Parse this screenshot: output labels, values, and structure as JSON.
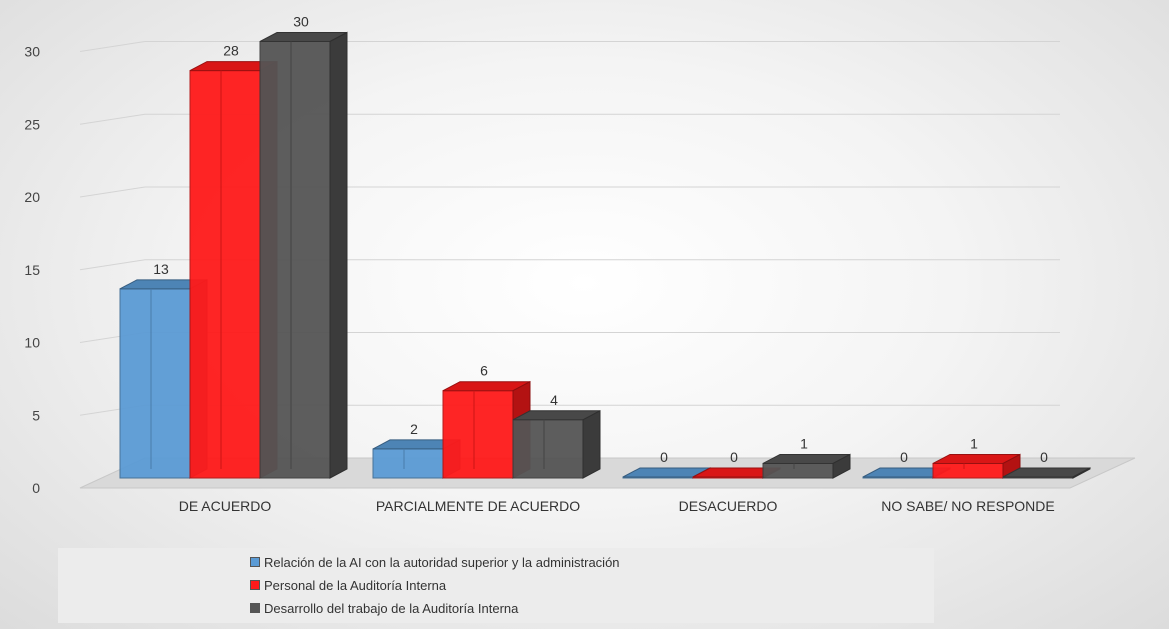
{
  "chart_data": {
    "type": "bar",
    "categories": [
      "DE ACUERDO",
      "PARCIALMENTE DE ACUERDO",
      "DESACUERDO",
      "NO SABE/ NO RESPONDE"
    ],
    "series": [
      {
        "name": "Relación de la AI con la autoridad superior y la administración",
        "values": [
          13,
          2,
          0,
          0
        ],
        "color": "#5b9bd5"
      },
      {
        "name": "Personal de la Auditoría Interna",
        "values": [
          28,
          6,
          0,
          1
        ],
        "color": "#ff1a1a"
      },
      {
        "name": "Desarrollo del trabajo de la Auditoría Interna",
        "values": [
          30,
          4,
          1,
          0
        ],
        "color": "#555555"
      }
    ],
    "y_ticks": [
      "0",
      "5",
      "10",
      "15",
      "20",
      "25",
      "30"
    ],
    "ylim": [
      0,
      30
    ],
    "title": "",
    "xlabel": "",
    "ylabel": "",
    "grid": true,
    "legend_position": "bottom",
    "style": "3d-clustered-column"
  }
}
